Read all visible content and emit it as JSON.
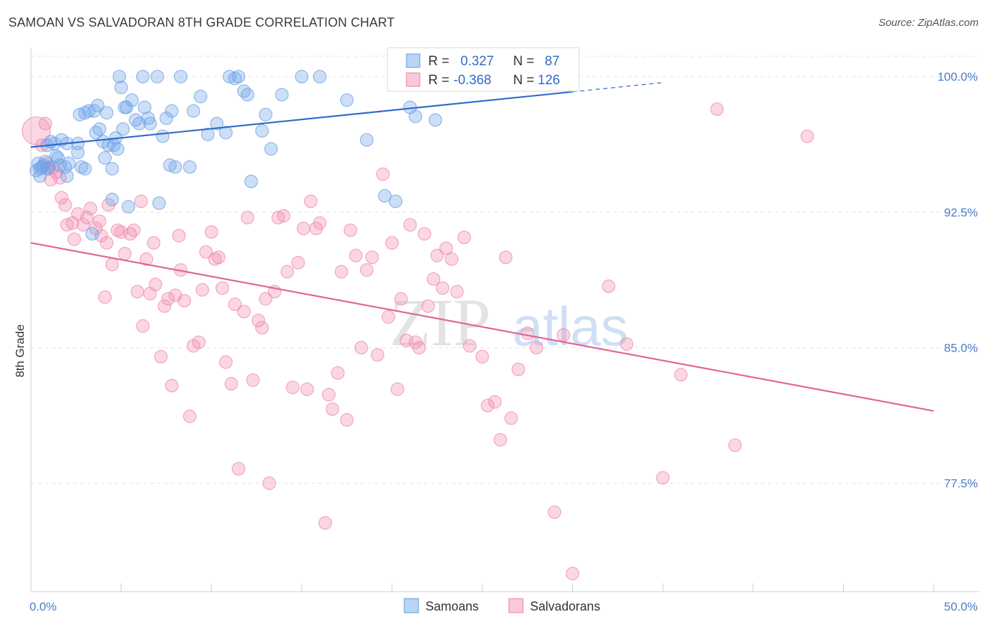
{
  "title": "SAMOAN VS SALVADORAN 8TH GRADE CORRELATION CHART",
  "source": "Source: ZipAtlas.com",
  "watermark": "ZIPatlas",
  "colors": {
    "samoans": "#6fa3e8",
    "samoans_line": "#2f6bc8",
    "salvadorans": "#f08cb0",
    "salvadorans_line": "#e06594",
    "tick_label": "#4a7cc9"
  },
  "legend": {
    "rows": [
      {
        "r_label": "R =",
        "r_value": "0.327",
        "n_label": "N =",
        "n_value": "87"
      },
      {
        "r_label": "R =",
        "r_value": "-0.368",
        "n_label": "N =",
        "n_value": "126"
      }
    ]
  },
  "bottom_legend": [
    "Samoans",
    "Salvadorans"
  ],
  "chart_data": {
    "type": "scatter",
    "xlabel": "",
    "ylabel": "8th Grade",
    "xlim": [
      0,
      50
    ],
    "ylim": [
      71.5,
      101.6
    ],
    "x_tick_labels": [
      "0.0%",
      "50.0%"
    ],
    "y_ticks": [
      100.0,
      92.5,
      85.0,
      77.5
    ],
    "y_tick_labels": [
      "100.0%",
      "92.5%",
      "85.0%",
      "77.5%"
    ],
    "grid": true,
    "legend_placement": "top-center",
    "series": [
      {
        "name": "Samoans",
        "R": 0.327,
        "N": 87,
        "trend": {
          "x0": 0,
          "y0": 96.1,
          "x1": 50,
          "y1": 101.2,
          "solid_to_x": 30
        },
        "points": [
          [
            0.3,
            94.8
          ],
          [
            0.4,
            95.2
          ],
          [
            0.5,
            94.9
          ],
          [
            0.6,
            95.0
          ],
          [
            0.7,
            95.1
          ],
          [
            0.8,
            95.3
          ],
          [
            0.9,
            94.9
          ],
          [
            1.0,
            95.0
          ],
          [
            0.9,
            96.2
          ],
          [
            1.1,
            96.4
          ],
          [
            1.3,
            96.3
          ],
          [
            1.5,
            95.5
          ],
          [
            1.6,
            95.1
          ],
          [
            1.9,
            95.0
          ],
          [
            2.0,
            94.5
          ],
          [
            2.1,
            95.2
          ],
          [
            1.7,
            96.5
          ],
          [
            2.0,
            96.3
          ],
          [
            2.6,
            95.8
          ],
          [
            2.8,
            95.0
          ],
          [
            3.0,
            94.9
          ],
          [
            2.7,
            97.9
          ],
          [
            3.0,
            98.0
          ],
          [
            3.2,
            98.1
          ],
          [
            3.5,
            98.1
          ],
          [
            3.6,
            96.9
          ],
          [
            3.8,
            97.1
          ],
          [
            3.7,
            98.4
          ],
          [
            4.0,
            96.4
          ],
          [
            4.1,
            95.5
          ],
          [
            4.2,
            98.0
          ],
          [
            4.3,
            96.2
          ],
          [
            4.5,
            94.9
          ],
          [
            4.6,
            96.2
          ],
          [
            4.7,
            96.6
          ],
          [
            4.5,
            93.2
          ],
          [
            4.8,
            96.0
          ],
          [
            4.9,
            100.0
          ],
          [
            5.0,
            99.4
          ],
          [
            5.1,
            97.1
          ],
          [
            5.2,
            98.3
          ],
          [
            5.3,
            98.3
          ],
          [
            5.4,
            92.8
          ],
          [
            5.6,
            98.7
          ],
          [
            5.8,
            97.6
          ],
          [
            6.0,
            97.4
          ],
          [
            6.2,
            100.0
          ],
          [
            6.3,
            98.3
          ],
          [
            6.5,
            97.7
          ],
          [
            6.6,
            97.4
          ],
          [
            7.0,
            100.0
          ],
          [
            7.1,
            93.0
          ],
          [
            7.3,
            96.7
          ],
          [
            7.5,
            97.7
          ],
          [
            7.8,
            98.1
          ],
          [
            7.7,
            95.1
          ],
          [
            8.0,
            95.0
          ],
          [
            8.3,
            100.0
          ],
          [
            8.8,
            95.0
          ],
          [
            9.0,
            98.1
          ],
          [
            9.4,
            98.9
          ],
          [
            9.8,
            96.8
          ],
          [
            10.3,
            97.4
          ],
          [
            10.8,
            96.9
          ],
          [
            11.0,
            100.0
          ],
          [
            11.3,
            99.9
          ],
          [
            11.5,
            100.0
          ],
          [
            11.8,
            99.2
          ],
          [
            12.0,
            99.0
          ],
          [
            12.2,
            94.2
          ],
          [
            12.8,
            97.0
          ],
          [
            13.0,
            97.9
          ],
          [
            13.3,
            96.0
          ],
          [
            13.9,
            99.0
          ],
          [
            15.0,
            100.0
          ],
          [
            16.0,
            100.0
          ],
          [
            17.5,
            98.7
          ],
          [
            18.6,
            96.5
          ],
          [
            19.6,
            93.4
          ],
          [
            20.2,
            93.1
          ],
          [
            21.0,
            98.3
          ],
          [
            21.3,
            97.8
          ],
          [
            22.4,
            97.6
          ],
          [
            3.4,
            91.3
          ],
          [
            2.6,
            96.3
          ],
          [
            1.4,
            95.6
          ],
          [
            0.5,
            94.5
          ]
        ]
      },
      {
        "name": "Salvadorans",
        "R": -0.368,
        "N": 126,
        "trend": {
          "x0": 0,
          "y0": 90.8,
          "x1": 50,
          "y1": 81.5
        },
        "points": [
          [
            0.3,
            97.0
          ],
          [
            0.6,
            96.2
          ],
          [
            0.9,
            95.2
          ],
          [
            1.0,
            94.9
          ],
          [
            1.1,
            94.3
          ],
          [
            1.4,
            94.7
          ],
          [
            1.6,
            94.4
          ],
          [
            1.7,
            93.3
          ],
          [
            1.9,
            92.9
          ],
          [
            2.0,
            91.8
          ],
          [
            2.3,
            91.9
          ],
          [
            2.6,
            92.4
          ],
          [
            2.9,
            91.8
          ],
          [
            3.1,
            92.2
          ],
          [
            3.3,
            92.7
          ],
          [
            3.6,
            91.6
          ],
          [
            3.8,
            92.0
          ],
          [
            3.9,
            91.2
          ],
          [
            4.2,
            90.8
          ],
          [
            4.1,
            87.8
          ],
          [
            4.3,
            92.9
          ],
          [
            4.5,
            89.6
          ],
          [
            4.8,
            91.5
          ],
          [
            5.0,
            91.4
          ],
          [
            5.2,
            90.2
          ],
          [
            5.5,
            91.3
          ],
          [
            5.7,
            91.5
          ],
          [
            5.9,
            88.1
          ],
          [
            6.1,
            93.1
          ],
          [
            6.2,
            86.2
          ],
          [
            6.4,
            89.9
          ],
          [
            6.6,
            88.0
          ],
          [
            6.8,
            90.8
          ],
          [
            6.9,
            88.5
          ],
          [
            7.2,
            84.5
          ],
          [
            7.4,
            87.3
          ],
          [
            7.6,
            87.7
          ],
          [
            7.8,
            82.9
          ],
          [
            8.0,
            87.9
          ],
          [
            8.2,
            91.2
          ],
          [
            8.3,
            89.3
          ],
          [
            8.5,
            87.6
          ],
          [
            8.8,
            81.2
          ],
          [
            9.0,
            85.1
          ],
          [
            9.3,
            85.3
          ],
          [
            9.5,
            88.2
          ],
          [
            9.7,
            90.3
          ],
          [
            10.0,
            91.4
          ],
          [
            10.2,
            89.9
          ],
          [
            10.4,
            90.0
          ],
          [
            10.6,
            88.3
          ],
          [
            10.8,
            84.2
          ],
          [
            11.1,
            83.0
          ],
          [
            11.3,
            87.4
          ],
          [
            11.5,
            78.3
          ],
          [
            11.8,
            87.0
          ],
          [
            12.0,
            92.2
          ],
          [
            12.3,
            83.2
          ],
          [
            12.6,
            86.5
          ],
          [
            12.8,
            86.1
          ],
          [
            13.0,
            87.7
          ],
          [
            13.2,
            77.5
          ],
          [
            13.5,
            88.1
          ],
          [
            13.7,
            92.2
          ],
          [
            14.0,
            92.3
          ],
          [
            14.2,
            89.2
          ],
          [
            14.5,
            82.8
          ],
          [
            14.8,
            89.7
          ],
          [
            15.1,
            91.6
          ],
          [
            15.3,
            82.7
          ],
          [
            15.5,
            93.1
          ],
          [
            15.8,
            91.6
          ],
          [
            16.0,
            91.9
          ],
          [
            16.3,
            75.3
          ],
          [
            16.5,
            82.4
          ],
          [
            16.7,
            81.6
          ],
          [
            17.0,
            83.6
          ],
          [
            17.2,
            89.2
          ],
          [
            17.5,
            81.0
          ],
          [
            17.7,
            91.5
          ],
          [
            18.0,
            90.1
          ],
          [
            18.3,
            85.0
          ],
          [
            18.6,
            89.3
          ],
          [
            18.9,
            90.0
          ],
          [
            19.2,
            84.6
          ],
          [
            19.5,
            94.6
          ],
          [
            19.8,
            86.7
          ],
          [
            20.0,
            90.8
          ],
          [
            20.3,
            82.7
          ],
          [
            20.5,
            87.7
          ],
          [
            20.8,
            85.4
          ],
          [
            21.0,
            91.8
          ],
          [
            21.3,
            85.3
          ],
          [
            21.5,
            85.0
          ],
          [
            21.8,
            91.3
          ],
          [
            22.0,
            87.3
          ],
          [
            22.3,
            88.8
          ],
          [
            22.5,
            90.1
          ],
          [
            22.8,
            88.3
          ],
          [
            23.0,
            90.5
          ],
          [
            23.3,
            89.9
          ],
          [
            23.6,
            88.1
          ],
          [
            24.0,
            91.1
          ],
          [
            24.3,
            85.1
          ],
          [
            25.0,
            84.5
          ],
          [
            25.3,
            81.8
          ],
          [
            25.7,
            82.0
          ],
          [
            26.0,
            79.9
          ],
          [
            26.3,
            90.0
          ],
          [
            26.6,
            81.1
          ],
          [
            27.0,
            83.8
          ],
          [
            27.5,
            85.8
          ],
          [
            28.0,
            85.0
          ],
          [
            29.0,
            75.9
          ],
          [
            29.5,
            85.7
          ],
          [
            30.0,
            72.5
          ],
          [
            32.0,
            88.4
          ],
          [
            33.0,
            85.2
          ],
          [
            35.0,
            77.8
          ],
          [
            36.0,
            83.5
          ],
          [
            38.0,
            98.2
          ],
          [
            39.0,
            79.6
          ],
          [
            43.0,
            96.7
          ],
          [
            0.8,
            97.4
          ],
          [
            1.2,
            95.0
          ],
          [
            2.4,
            91.0
          ]
        ]
      }
    ]
  }
}
